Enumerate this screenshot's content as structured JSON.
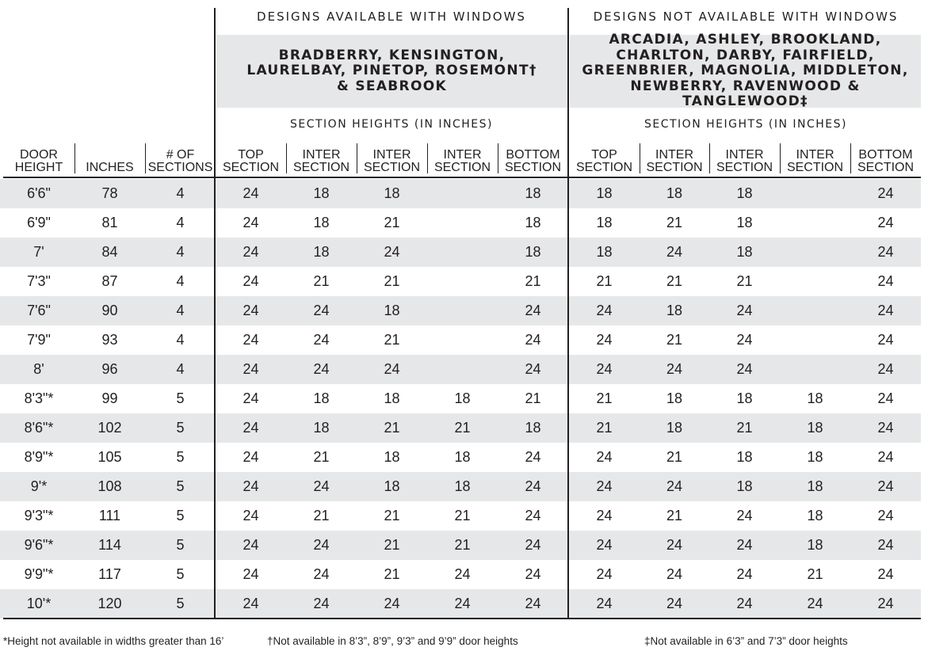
{
  "groups": [
    {
      "title": "DESIGNS AVAILABLE WITH WINDOWS",
      "designs": "BRADBERRY, KENSINGTON,\nLAURELBAY, PINETOP, ROSEMONT†\n& SEABROOK",
      "subtitle": "SECTION HEIGHTS (IN INCHES)"
    },
    {
      "title": "DESIGNS NOT AVAILABLE WITH WINDOWS",
      "designs": "ARCADIA, ASHLEY, BROOKLAND,\nCHARLTON, DARBY, FAIRFIELD,\nGREENBRIER, MAGNOLIA, MIDDLETON,\nNEWBERRY, RAVENWOOD & TANGLEWOOD‡",
      "subtitle": "SECTION HEIGHTS (IN INCHES)"
    }
  ],
  "columns": [
    "DOOR\nHEIGHT",
    "INCHES",
    "# OF\nSECTIONS",
    "TOP\nSECTION",
    "INTER\nSECTION",
    "INTER\nSECTION",
    "INTER\nSECTION",
    "BOTTOM\nSECTION",
    "TOP\nSECTION",
    "INTER\nSECTION",
    "INTER\nSECTION",
    "INTER\nSECTION",
    "BOTTOM\nSECTION"
  ],
  "rows": [
    [
      "6'6\"",
      "78",
      "4",
      "24",
      "18",
      "18",
      "",
      "18",
      "18",
      "18",
      "18",
      "",
      "24"
    ],
    [
      "6'9\"",
      "81",
      "4",
      "24",
      "18",
      "21",
      "",
      "18",
      "18",
      "21",
      "18",
      "",
      "24"
    ],
    [
      "7'",
      "84",
      "4",
      "24",
      "18",
      "24",
      "",
      "18",
      "18",
      "24",
      "18",
      "",
      "24"
    ],
    [
      "7'3\"",
      "87",
      "4",
      "24",
      "21",
      "21",
      "",
      "21",
      "21",
      "21",
      "21",
      "",
      "24"
    ],
    [
      "7'6\"",
      "90",
      "4",
      "24",
      "24",
      "18",
      "",
      "24",
      "24",
      "18",
      "24",
      "",
      "24"
    ],
    [
      "7'9\"",
      "93",
      "4",
      "24",
      "24",
      "21",
      "",
      "24",
      "24",
      "21",
      "24",
      "",
      "24"
    ],
    [
      "8'",
      "96",
      "4",
      "24",
      "24",
      "24",
      "",
      "24",
      "24",
      "24",
      "24",
      "",
      "24"
    ],
    [
      "8'3\"*",
      "99",
      "5",
      "24",
      "18",
      "18",
      "18",
      "21",
      "21",
      "18",
      "18",
      "18",
      "24"
    ],
    [
      "8'6\"*",
      "102",
      "5",
      "24",
      "18",
      "21",
      "21",
      "18",
      "21",
      "18",
      "21",
      "18",
      "24"
    ],
    [
      "8'9\"*",
      "105",
      "5",
      "24",
      "21",
      "18",
      "18",
      "24",
      "24",
      "21",
      "18",
      "18",
      "24"
    ],
    [
      "9'*",
      "108",
      "5",
      "24",
      "24",
      "18",
      "18",
      "24",
      "24",
      "24",
      "18",
      "18",
      "24"
    ],
    [
      "9'3\"*",
      "111",
      "5",
      "24",
      "21",
      "21",
      "21",
      "24",
      "24",
      "21",
      "24",
      "18",
      "24"
    ],
    [
      "9'6\"*",
      "114",
      "5",
      "24",
      "24",
      "21",
      "21",
      "24",
      "24",
      "24",
      "24",
      "18",
      "24"
    ],
    [
      "9'9\"*",
      "117",
      "5",
      "24",
      "24",
      "21",
      "24",
      "24",
      "24",
      "24",
      "24",
      "21",
      "24"
    ],
    [
      "10'*",
      "120",
      "5",
      "24",
      "24",
      "24",
      "24",
      "24",
      "24",
      "24",
      "24",
      "24",
      "24"
    ]
  ],
  "footnotes": [
    "*Height not available in widths greater than 16’",
    "†Not available in 8’3”, 8’9”, 9’3” and 9’9” door heights",
    "‡Not available in 6’3” and 7’3” door heights"
  ]
}
